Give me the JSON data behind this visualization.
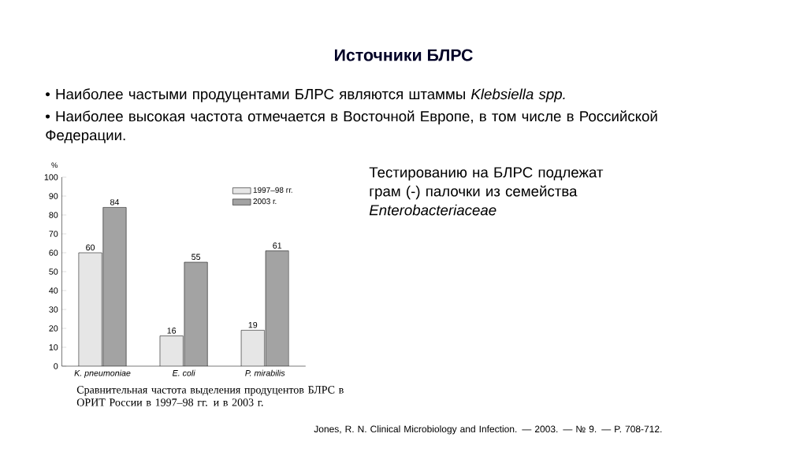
{
  "chart_data": {
    "type": "bar",
    "title": "Источники БЛРС",
    "annotations": [
      "• Наиболее частыми продуцентами БЛРС являются штаммы *Klebsiella spp.*",
      "• Наиболее высокая частота отмечается в Восточной Европе, в том числе в Российской Федерации.",
      "Тестированию на БЛРС подлежат грам (-) палочки из семейства *Enterobacteriaceae*",
      "Сравнительная частота выделения продуцентов БЛРС в ОРИТ России в 1997–98 гг. и в 2003 г.",
      "Jones, R. N.  Clinical Microbiology and Infection. — 2003. — № 9. — P. 708-712."
    ],
    "ylabel": "%",
    "categories": [
      "K. pneumoniae",
      "E. coli",
      "P. mirabilis"
    ],
    "series": [
      {
        "name": "1997–98 гг.",
        "color": "#e6e6e6",
        "values": [
          60,
          16,
          19
        ]
      },
      {
        "name": "2003 г.",
        "color": "#a3a3a3",
        "values": [
          84,
          55,
          61
        ]
      }
    ],
    "ylim": [
      0,
      100
    ],
    "yticks": [
      0,
      10,
      20,
      30,
      40,
      50,
      60,
      70,
      80,
      90,
      100
    ],
    "data_labels": true,
    "legend": "top right"
  }
}
